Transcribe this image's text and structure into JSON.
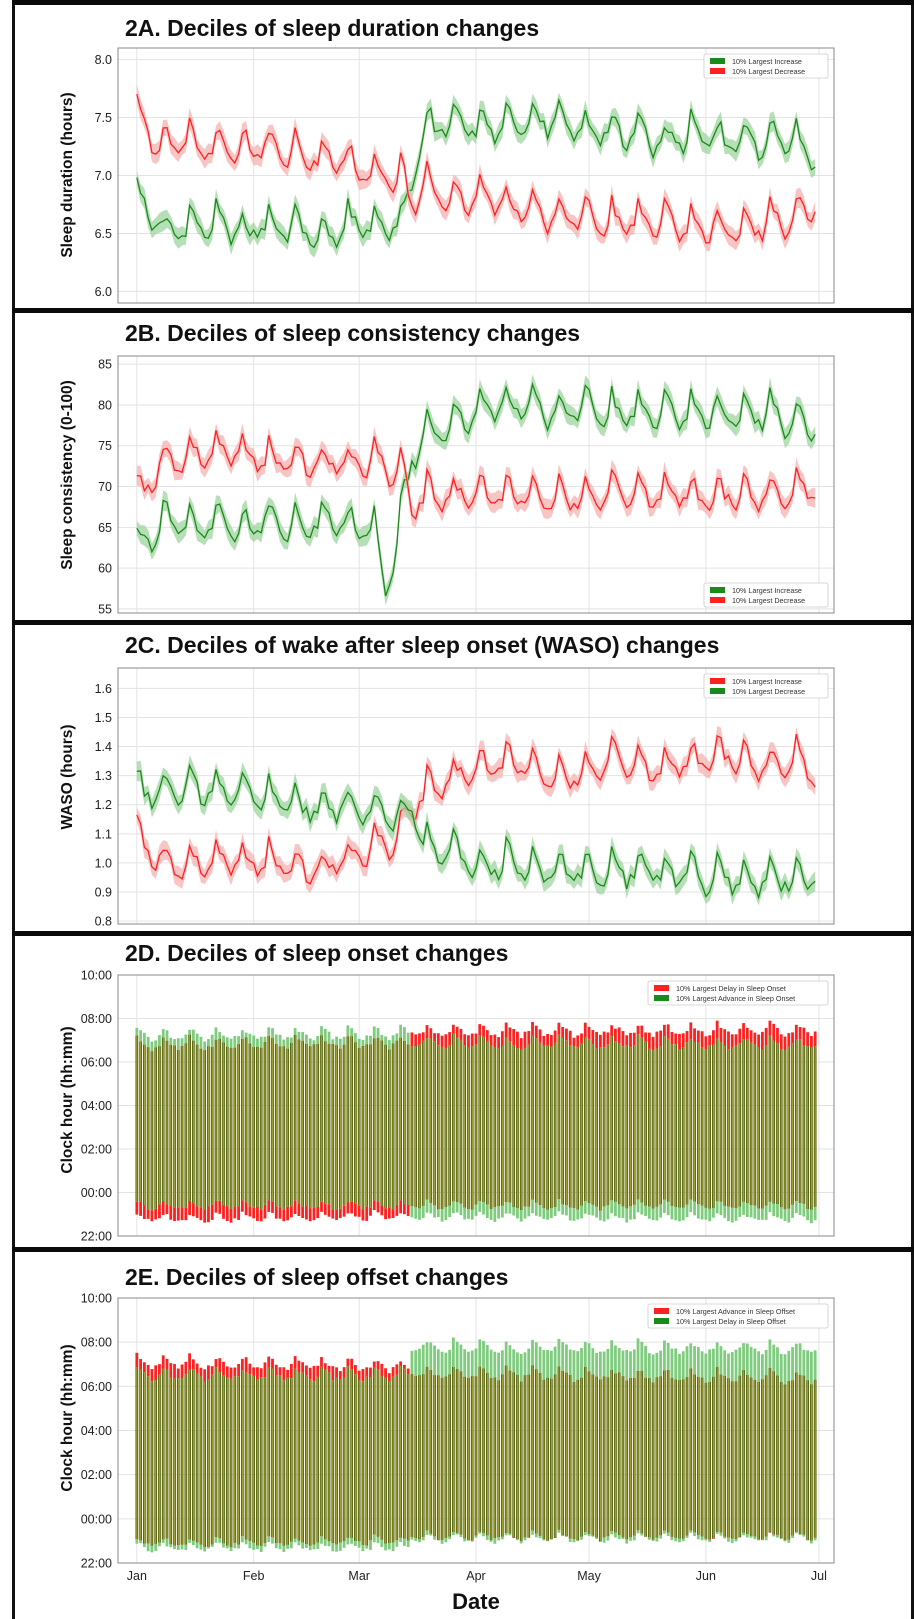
{
  "chart_data": [
    {
      "id": "A",
      "type": "line",
      "title": "2A. Deciles of sleep duration changes",
      "xlabel": "",
      "ylabel": "Sleep duration (hours)",
      "ylim": [
        5.9,
        8.1
      ],
      "yticks": [
        6.0,
        6.5,
        7.0,
        7.5,
        8.0
      ],
      "ytick_labels": [
        "6.0",
        "6.5",
        "7.0",
        "7.5",
        "8.0"
      ],
      "legend": {
        "position": "top-right",
        "entries": [
          {
            "label": "10% Largest Increase",
            "color": "#1a8a1a"
          },
          {
            "label": "10% Largest Decrease",
            "color": "#ff2020"
          }
        ]
      },
      "series": [
        {
          "name": "10% Largest Increase",
          "color": "#1a8a1a",
          "x": [
            0,
            7,
            14,
            21,
            28,
            35,
            42,
            49,
            56,
            63,
            70,
            73,
            77,
            84,
            91,
            98,
            105,
            112,
            119,
            126,
            133,
            140,
            147,
            154,
            161,
            168,
            175,
            180
          ],
          "y": [
            6.85,
            6.5,
            6.55,
            6.6,
            6.5,
            6.6,
            6.55,
            6.5,
            6.6,
            6.6,
            6.6,
            7.0,
            7.4,
            7.5,
            7.4,
            7.45,
            7.45,
            7.5,
            7.35,
            7.4,
            7.35,
            7.3,
            7.35,
            7.3,
            7.3,
            7.3,
            7.3,
            7.1
          ]
        },
        {
          "name": "10% Largest Decrease",
          "color": "#ff2020",
          "x": [
            0,
            7,
            14,
            21,
            28,
            35,
            42,
            49,
            56,
            63,
            70,
            73,
            77,
            84,
            91,
            98,
            105,
            112,
            119,
            126,
            133,
            140,
            147,
            154,
            161,
            168,
            175,
            180
          ],
          "y": [
            7.5,
            7.25,
            7.3,
            7.25,
            7.25,
            7.25,
            7.2,
            7.15,
            7.1,
            7.0,
            7.0,
            6.8,
            6.95,
            6.8,
            6.8,
            6.75,
            6.7,
            6.65,
            6.65,
            6.6,
            6.6,
            6.6,
            6.55,
            6.55,
            6.55,
            6.6,
            6.65,
            6.8
          ]
        }
      ]
    },
    {
      "id": "B",
      "type": "line",
      "title": "2B. Deciles of sleep consistency changes",
      "xlabel": "",
      "ylabel": "Sleep consistency (0-100)",
      "ylim": [
        54.5,
        86
      ],
      "yticks": [
        55,
        60,
        65,
        70,
        75,
        80,
        85
      ],
      "ytick_labels": [
        "55",
        "60",
        "65",
        "70",
        "75",
        "80",
        "85"
      ],
      "legend": {
        "position": "bottom-right",
        "entries": [
          {
            "label": "10% Largest Increase",
            "color": "#1a8a1a"
          },
          {
            "label": "10% Largest Decrease",
            "color": "#ff2020"
          }
        ]
      },
      "series": [
        {
          "name": "10% Largest Increase",
          "color": "#1a8a1a",
          "x": [
            0,
            7,
            14,
            21,
            28,
            35,
            42,
            49,
            56,
            63,
            66,
            70,
            73,
            77,
            84,
            91,
            98,
            105,
            112,
            119,
            126,
            133,
            140,
            147,
            154,
            161,
            168,
            175,
            180
          ],
          "y": [
            62,
            66,
            65,
            66,
            65,
            66,
            65,
            66,
            65,
            65,
            57,
            66,
            74,
            77,
            78,
            79,
            80,
            80,
            79,
            80,
            79,
            79,
            79,
            79,
            79,
            79,
            79,
            78,
            78
          ]
        },
        {
          "name": "10% Largest Decrease",
          "color": "#ff2020",
          "x": [
            0,
            7,
            14,
            21,
            28,
            35,
            42,
            49,
            56,
            63,
            70,
            73,
            77,
            84,
            91,
            98,
            105,
            112,
            119,
            126,
            133,
            140,
            147,
            154,
            161,
            168,
            175,
            180
          ],
          "y": [
            69,
            73,
            74,
            74,
            74,
            73,
            73,
            73,
            73,
            73,
            72,
            68,
            69,
            69,
            69,
            69,
            69,
            69,
            69,
            69,
            69,
            69,
            69,
            69,
            69,
            69,
            69,
            70
          ]
        }
      ]
    },
    {
      "id": "C",
      "type": "line",
      "title": "2C. Deciles of wake after sleep onset (WASO) changes",
      "xlabel": "",
      "ylabel": "WASO (hours)",
      "ylim": [
        0.79,
        1.67
      ],
      "yticks": [
        0.8,
        0.9,
        1.0,
        1.1,
        1.2,
        1.3,
        1.4,
        1.5,
        1.6
      ],
      "ytick_labels": [
        "0.8",
        "0.9",
        "1.0",
        "1.1",
        "1.2",
        "1.3",
        "1.4",
        "1.5",
        "1.6"
      ],
      "legend": {
        "position": "top-right",
        "entries": [
          {
            "label": "10% Largest Increase",
            "color": "#ff2020"
          },
          {
            "label": "10% Largest Decrease",
            "color": "#1a8a1a"
          }
        ]
      },
      "series": [
        {
          "name": "10% Largest Increase",
          "color": "#ff2020",
          "x": [
            0,
            7,
            14,
            21,
            28,
            35,
            42,
            49,
            56,
            63,
            70,
            73,
            77,
            84,
            91,
            98,
            105,
            112,
            119,
            126,
            133,
            140,
            147,
            154,
            161,
            168,
            175,
            180
          ],
          "y": [
            1.1,
            1.0,
            1.0,
            1.0,
            1.0,
            1.0,
            0.98,
            0.98,
            1.02,
            1.05,
            1.1,
            1.2,
            1.25,
            1.3,
            1.32,
            1.35,
            1.33,
            1.3,
            1.32,
            1.35,
            1.33,
            1.32,
            1.35,
            1.38,
            1.35,
            1.33,
            1.35,
            1.3
          ]
        },
        {
          "name": "10% Largest Decrease",
          "color": "#1a8a1a",
          "x": [
            0,
            7,
            14,
            21,
            28,
            35,
            42,
            49,
            56,
            63,
            70,
            73,
            77,
            84,
            91,
            98,
            105,
            112,
            119,
            126,
            133,
            140,
            147,
            154,
            161,
            168,
            175,
            180
          ],
          "y": [
            1.25,
            1.25,
            1.25,
            1.25,
            1.25,
            1.22,
            1.2,
            1.18,
            1.2,
            1.18,
            1.15,
            1.2,
            1.05,
            1.03,
            1.0,
            1.0,
            0.98,
            0.98,
            0.97,
            0.97,
            0.98,
            0.97,
            0.96,
            0.95,
            0.95,
            0.95,
            0.96,
            0.95
          ]
        }
      ]
    },
    {
      "id": "D",
      "type": "bar",
      "title": "2D. Deciles of sleep onset changes",
      "xlabel": "",
      "ylabel": "Clock hour (hh:mm)",
      "ylim": [
        -2,
        10
      ],
      "yticks": [
        -2,
        0,
        2,
        4,
        6,
        8,
        10
      ],
      "ytick_labels": [
        "22:00",
        "00:00",
        "02:00",
        "04:00",
        "06:00",
        "08:00",
        "10:00"
      ],
      "legend": {
        "position": "top-right",
        "entries": [
          {
            "label": "10% Largest Delay in Sleep Onset",
            "color": "#ff2020"
          },
          {
            "label": "10% Largest Advance in Sleep Onset",
            "color": "#1a8a1a"
          }
        ]
      },
      "series": [
        {
          "name": "10% Largest Delay in Sleep Onset",
          "color": "#ff2020",
          "x": [
            0,
            72,
            73,
            180
          ],
          "onset": [
            -1.2,
            -1.1,
            -0.6,
            -0.6
          ],
          "offset": [
            6.8,
            6.9,
            7.4,
            7.5
          ]
        },
        {
          "name": "10% Largest Advance in Sleep Onset",
          "color": "#1a8a1a",
          "x": [
            0,
            72,
            73,
            180
          ],
          "onset": [
            -0.6,
            -0.6,
            -1.1,
            -1.2
          ],
          "offset": [
            7.2,
            7.3,
            6.9,
            6.8
          ]
        }
      ]
    },
    {
      "id": "E",
      "type": "bar",
      "title": "2E. Deciles of sleep offset changes",
      "xlabel": "Date",
      "ylabel": "Clock hour (hh:mm)",
      "ylim": [
        -2,
        10
      ],
      "yticks": [
        -2,
        0,
        2,
        4,
        6,
        8,
        10
      ],
      "ytick_labels": [
        "22:00",
        "00:00",
        "02:00",
        "04:00",
        "06:00",
        "08:00",
        "10:00"
      ],
      "xtick_labels": [
        "Jan",
        "Feb",
        "Mar",
        "Apr",
        "May",
        "Jun",
        "Jul"
      ],
      "legend": {
        "position": "top-right",
        "entries": [
          {
            "label": "10% Largest Advance in Sleep Offset",
            "color": "#ff2020"
          },
          {
            "label": "10% Largest Delay in Sleep Offset",
            "color": "#1a8a1a"
          }
        ]
      },
      "series": [
        {
          "name": "10% Largest Advance in Sleep Offset",
          "color": "#ff2020",
          "x": [
            0,
            72,
            73,
            180
          ],
          "onset": [
            -1.1,
            -1.0,
            -0.8,
            -0.8
          ],
          "offset": [
            7.1,
            6.9,
            6.6,
            6.4
          ]
        },
        {
          "name": "10% Largest Delay in Sleep Offset",
          "color": "#1a8a1a",
          "x": [
            0,
            72,
            73,
            180
          ],
          "onset": [
            -1.3,
            -1.3,
            -0.9,
            -0.9
          ],
          "offset": [
            6.5,
            6.5,
            7.8,
            7.7
          ]
        }
      ]
    }
  ],
  "x_axis": {
    "xlim": [
      -5,
      185
    ],
    "month_ticks": [
      0,
      31,
      59,
      90,
      120,
      151,
      181
    ],
    "month_labels": [
      "Jan",
      "Feb",
      "Mar",
      "Apr",
      "May",
      "Jun",
      "Jul"
    ]
  },
  "colors": {
    "increase_green": "#1a8a1a",
    "decrease_red": "#ff2020",
    "band_green": "#9fd49f",
    "band_red": "#f5b1b1",
    "grid": "#e3e3e3",
    "frame": "#8a8a8a",
    "bar_olive": "#5e6a12"
  }
}
